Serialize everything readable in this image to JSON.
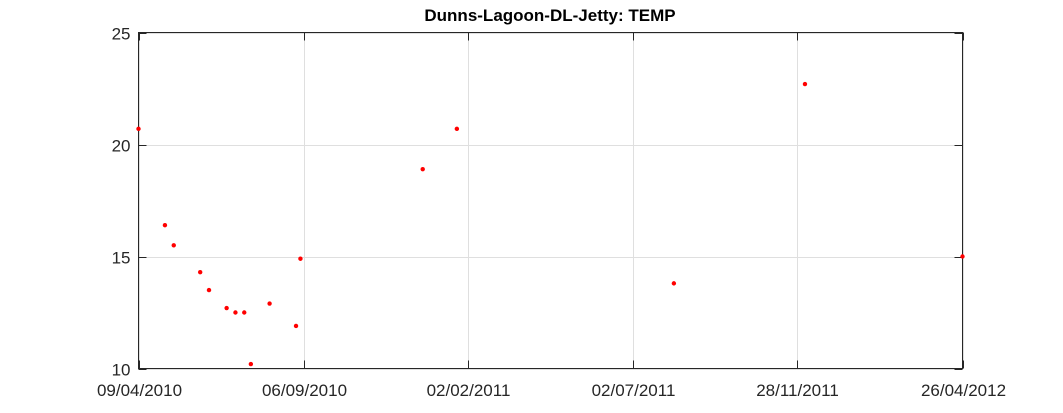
{
  "chart_data": {
    "type": "scatter",
    "title": "Dunns-Lagoon-DL-Jetty: TEMP",
    "xlabel": "",
    "ylabel": "",
    "x_ticks": [
      "09/04/2010",
      "06/09/2010",
      "02/02/2011",
      "02/07/2011",
      "28/11/2011",
      "26/04/2012"
    ],
    "x_tick_dates": [
      "2010-04-09",
      "2010-09-06",
      "2011-02-02",
      "2011-07-02",
      "2011-11-28",
      "2012-04-26"
    ],
    "xlim": [
      "2010-04-09",
      "2012-04-26"
    ],
    "y_ticks": [
      10,
      15,
      20,
      25
    ],
    "ylim": [
      10,
      25
    ],
    "grid": true,
    "marker_color": "#ff0000",
    "series": [
      {
        "points": [
          {
            "x": "2010-04-09",
            "y": 20.7
          },
          {
            "x": "2010-05-03",
            "y": 16.4
          },
          {
            "x": "2010-05-11",
            "y": 15.5
          },
          {
            "x": "2010-06-04",
            "y": 14.3
          },
          {
            "x": "2010-06-12",
            "y": 13.5
          },
          {
            "x": "2010-06-28",
            "y": 12.7
          },
          {
            "x": "2010-07-06",
            "y": 12.5
          },
          {
            "x": "2010-07-14",
            "y": 12.5
          },
          {
            "x": "2010-07-20",
            "y": 10.2
          },
          {
            "x": "2010-08-06",
            "y": 12.9
          },
          {
            "x": "2010-08-30",
            "y": 11.9
          },
          {
            "x": "2010-09-03",
            "y": 14.9
          },
          {
            "x": "2010-12-23",
            "y": 18.9
          },
          {
            "x": "2011-01-23",
            "y": 20.7
          },
          {
            "x": "2011-08-08",
            "y": 13.8
          },
          {
            "x": "2011-12-05",
            "y": 22.7
          },
          {
            "x": "2012-04-26",
            "y": 15.0
          }
        ]
      }
    ]
  }
}
